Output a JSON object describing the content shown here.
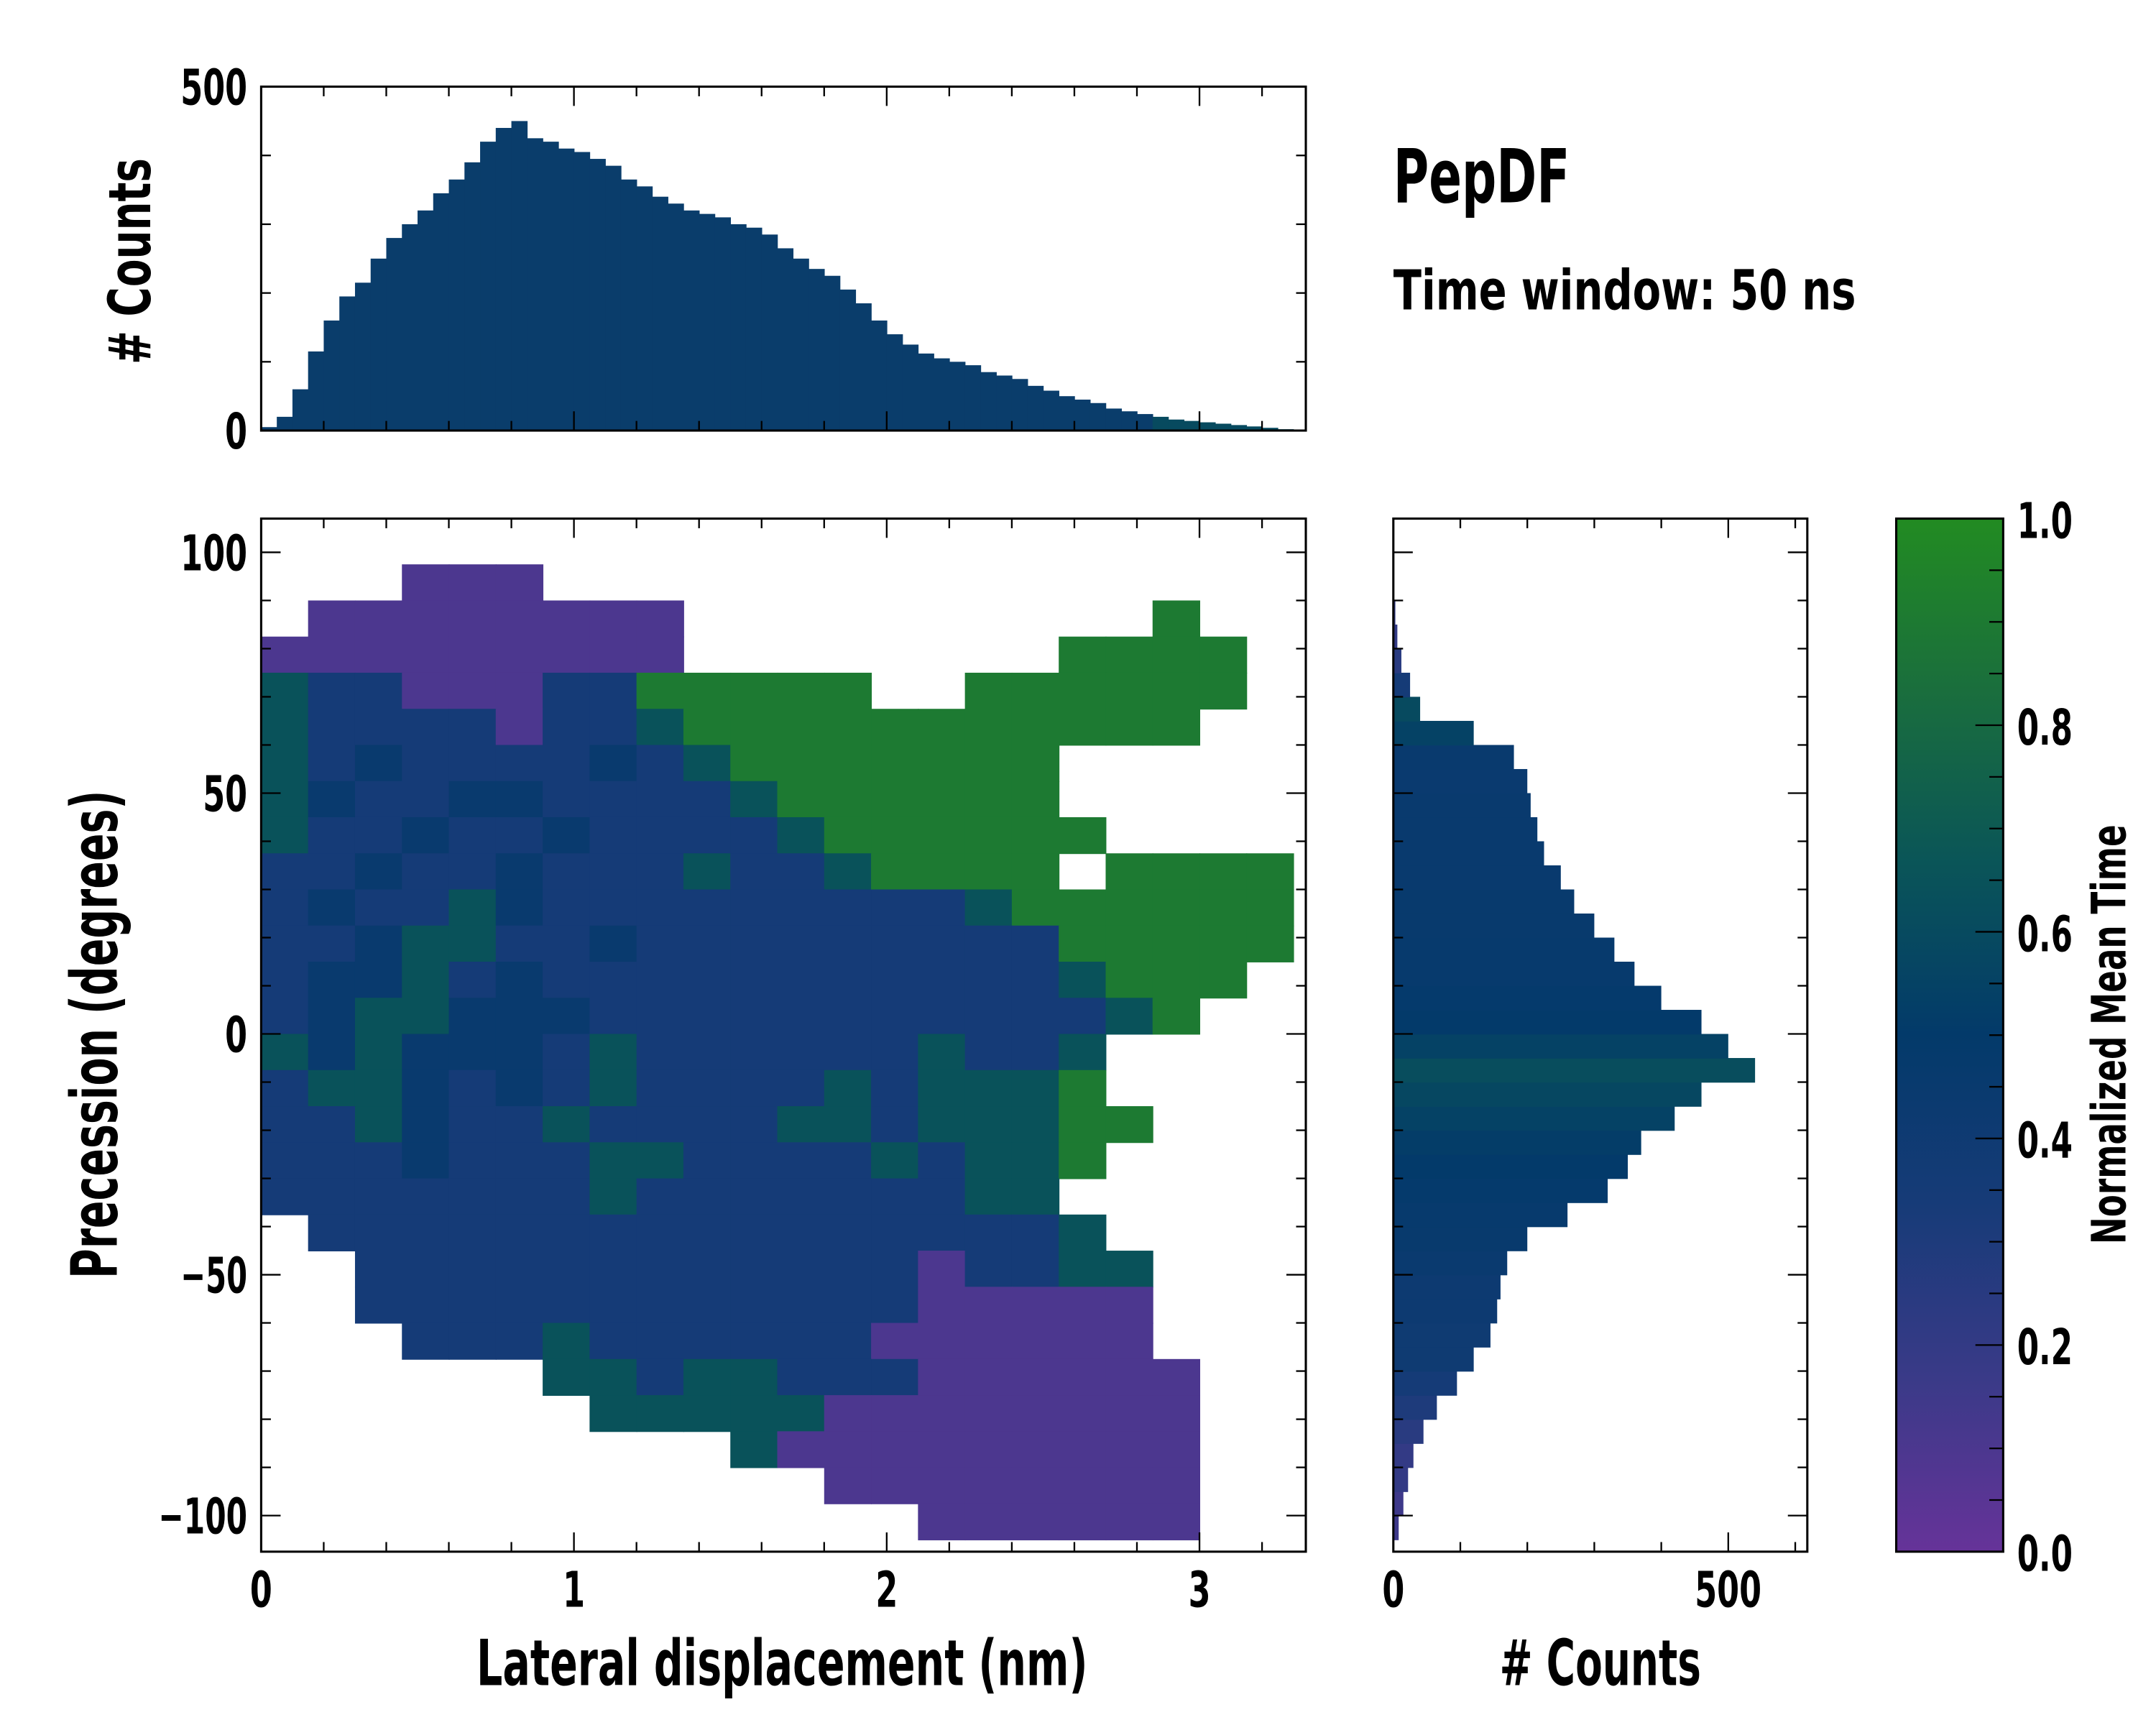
{
  "chart_data": [
    {
      "id": "top-histogram",
      "type": "bar",
      "ylabel": "# Counts",
      "xlim": [
        0,
        3.34
      ],
      "ylim": [
        0,
        500
      ],
      "yticks": [
        "0",
        "500"
      ],
      "bin_width": 0.05,
      "x": [
        0,
        0.05,
        0.1,
        0.15,
        0.2,
        0.25,
        0.3,
        0.35,
        0.4,
        0.45,
        0.5,
        0.55,
        0.6,
        0.65,
        0.7,
        0.75,
        0.8,
        0.85,
        0.9,
        0.95,
        1.0,
        1.05,
        1.1,
        1.15,
        1.2,
        1.25,
        1.3,
        1.35,
        1.4,
        1.45,
        1.5,
        1.55,
        1.6,
        1.65,
        1.7,
        1.75,
        1.8,
        1.85,
        1.9,
        1.95,
        2.0,
        2.05,
        2.1,
        2.15,
        2.2,
        2.25,
        2.3,
        2.35,
        2.4,
        2.45,
        2.5,
        2.55,
        2.6,
        2.65,
        2.7,
        2.75,
        2.8,
        2.85,
        2.9,
        2.95,
        3.0,
        3.05,
        3.1,
        3.15,
        3.2,
        3.25
      ],
      "values": [
        5,
        20,
        60,
        115,
        160,
        195,
        215,
        250,
        280,
        300,
        320,
        345,
        365,
        390,
        420,
        440,
        450,
        425,
        420,
        410,
        405,
        395,
        385,
        365,
        355,
        340,
        330,
        320,
        315,
        310,
        300,
        295,
        285,
        265,
        250,
        235,
        225,
        205,
        185,
        160,
        140,
        125,
        112,
        105,
        100,
        95,
        85,
        80,
        75,
        65,
        58,
        50,
        45,
        40,
        32,
        28,
        24,
        20,
        16,
        14,
        12,
        10,
        8,
        6,
        4,
        2
      ],
      "color": "#0a3d6b"
    },
    {
      "id": "main-heatmap",
      "type": "heatmap",
      "xlabel": "Lateral displacement (nm)",
      "ylabel": "Precession (degrees)",
      "xlim": [
        0,
        3.34
      ],
      "ylim": [
        -107.5,
        107
      ],
      "xticks": [
        "0",
        "1",
        "2",
        "3"
      ],
      "yticks": [
        "100",
        "50",
        "0",
        "−50",
        "−100"
      ],
      "ytick_values": [
        100,
        50,
        0,
        -50,
        -100
      ],
      "cell_x": 0.15,
      "cell_y": 7.5,
      "y_top": 105,
      "value_codes": {
        "p": 0.1,
        "b": 0.35,
        "d": 0.45,
        "t": 0.65,
        "g": 0.9
      },
      "rows": [
        "......................",
        "...ppp................",
        ".pppppppp..........g..",
        "ppppppppp........gggg.",
        "tbbpppbbggggg..gggggg.",
        "tbbbbpbbtggggggggggg..",
        "tbdbbbbdbtggggggg.....",
        "tdbbddbbbbtgggggg.....",
        "tbbdbbdbbbbtgggggg....",
        "bbdbbdbbbtbbtgggg.gggg",
        "bdbbtdbbbbbbbbbtgggggg",
        "bbdttbbdbbbbbbbbbggggg",
        "bddtbdbbbbbbbbbbbtggg.",
        "bdttdddbbbbbbbbbbbtg..",
        "tdtdddbtbbbbbbtbbt....",
        "bttdbdbtbbbbtbtttg....",
        "bbtdbbtbbbbttbtttgg...",
        "bbbdbbbttbbbbtbttg....",
        "bbbbbbbtbbbbbbbtt.....",
        ".bbbbbbbbbbbbbbbbt....",
        "..bbbbbbbbbbbbpbbtt...",
        "..bbbbbbbbbbbbppppp...",
        "...bbbtbbbbbbpppppp...",
        "......ttbttbbbpppppp..",
        ".......tttttpppppppp..",
        "..........tppppppppp..",
        "............pppppppp..",
        "..............pppppp.."
      ]
    },
    {
      "id": "right-histogram",
      "type": "bar",
      "orientation": "horizontal",
      "xlabel": "# Counts",
      "xlim": [
        0,
        618
      ],
      "xticks": [
        "0",
        "500"
      ],
      "bin_width": 5,
      "y": [
        -102.5,
        -97.5,
        -92.5,
        -87.5,
        -82.5,
        -77.5,
        -72.5,
        -67.5,
        -62.5,
        -57.5,
        -52.5,
        -47.5,
        -42.5,
        -37.5,
        -32.5,
        -27.5,
        -22.5,
        -17.5,
        -12.5,
        -7.5,
        -2.5,
        2.5,
        7.5,
        12.5,
        17.5,
        22.5,
        27.5,
        32.5,
        37.5,
        42.5,
        47.5,
        52.5,
        57.5,
        62.5,
        67.5,
        72.5,
        77.5,
        82.5,
        87.5,
        92.5
      ],
      "values": [
        8,
        15,
        22,
        30,
        45,
        65,
        95,
        120,
        145,
        155,
        160,
        170,
        200,
        260,
        320,
        350,
        370,
        420,
        460,
        540,
        500,
        460,
        400,
        360,
        330,
        300,
        270,
        250,
        225,
        215,
        205,
        200,
        180,
        120,
        40,
        25,
        12,
        6,
        3,
        1
      ],
      "mean_time": [
        0.15,
        0.15,
        0.2,
        0.2,
        0.25,
        0.3,
        0.35,
        0.4,
        0.4,
        0.42,
        0.42,
        0.44,
        0.46,
        0.47,
        0.48,
        0.5,
        0.52,
        0.55,
        0.58,
        0.62,
        0.55,
        0.5,
        0.48,
        0.47,
        0.47,
        0.46,
        0.46,
        0.45,
        0.45,
        0.45,
        0.45,
        0.44,
        0.45,
        0.55,
        0.6,
        0.35,
        0.25,
        0.2,
        0.2,
        0.2
      ]
    },
    {
      "id": "colorbar",
      "type": "colorbar",
      "label": "Normalized Mean Time",
      "range": [
        0,
        1
      ],
      "ticks": [
        "0.0",
        "0.2",
        "0.4",
        "0.6",
        "0.8",
        "1.0"
      ],
      "colors": [
        "#663399",
        "#3a3a88",
        "#173b78",
        "#033a6a",
        "#0a5558",
        "#1a6e3d",
        "#228b22"
      ]
    }
  ],
  "annotations": {
    "title": "PepDF",
    "subtitle": "Time window: 50 ns"
  }
}
